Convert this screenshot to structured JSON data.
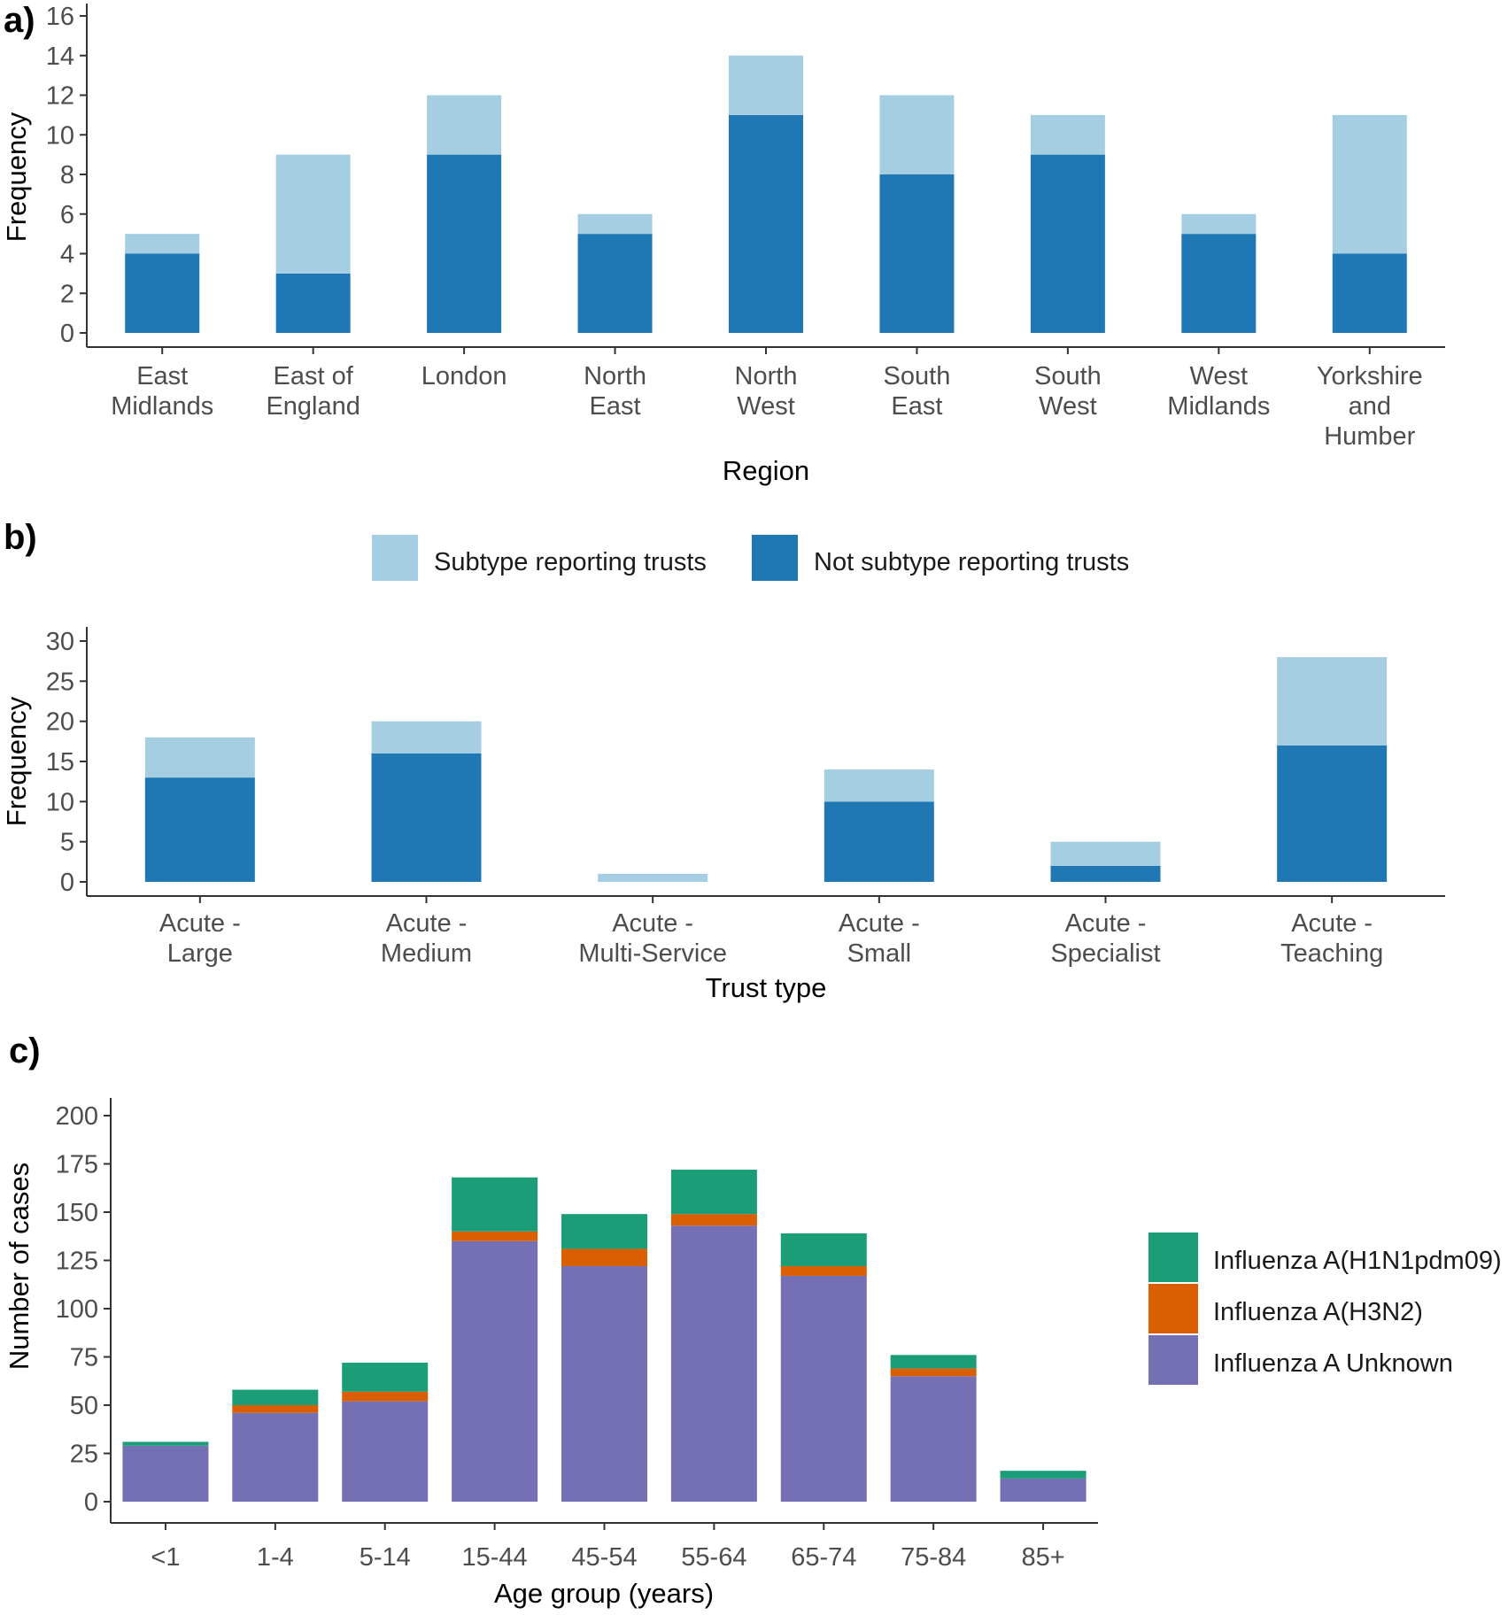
{
  "chart_data": [
    {
      "panel": "a)",
      "type": "bar",
      "stacked": true,
      "xlabel": "Region",
      "ylabel": "Frequency",
      "ylim": [
        0,
        16
      ],
      "yticks": [
        0,
        2,
        4,
        6,
        8,
        10,
        12,
        14,
        16
      ],
      "categories": [
        [
          "East",
          "Midlands"
        ],
        [
          "East of",
          "England"
        ],
        [
          "London"
        ],
        [
          "North",
          "East"
        ],
        [
          "North",
          "West"
        ],
        [
          "South",
          "East"
        ],
        [
          "South",
          "West"
        ],
        [
          "West",
          "Midlands"
        ],
        [
          "Yorkshire",
          "and",
          "Humber"
        ]
      ],
      "series": [
        {
          "name": "Not subtype reporting trusts",
          "color": "#1f78b4",
          "values": [
            4,
            3,
            9,
            5,
            11,
            8,
            9,
            5,
            4
          ]
        },
        {
          "name": "Subtype reporting trusts",
          "color": "#a6cee3",
          "values": [
            1,
            6,
            3,
            1,
            3,
            4,
            2,
            1,
            7
          ]
        }
      ]
    },
    {
      "panel": "b)",
      "type": "bar",
      "stacked": true,
      "xlabel": "Trust type",
      "ylabel": "Frequency",
      "ylim": [
        0,
        30
      ],
      "yticks": [
        0,
        5,
        10,
        15,
        20,
        25,
        30
      ],
      "legend": [
        {
          "name": "Subtype reporting trusts",
          "color": "#a6cee3"
        },
        {
          "name": "Not subtype reporting trusts",
          "color": "#1f78b4"
        }
      ],
      "categories": [
        [
          "Acute -",
          "Large"
        ],
        [
          "Acute -",
          "Medium"
        ],
        [
          "Acute -",
          "Multi-Service"
        ],
        [
          "Acute -",
          "Small"
        ],
        [
          "Acute -",
          "Specialist"
        ],
        [
          "Acute -",
          "Teaching"
        ]
      ],
      "series": [
        {
          "name": "Not subtype reporting trusts",
          "color": "#1f78b4",
          "values": [
            13,
            16,
            0,
            10,
            2,
            17
          ]
        },
        {
          "name": "Subtype reporting trusts",
          "color": "#a6cee3",
          "values": [
            5,
            4,
            1,
            4,
            3,
            11
          ]
        }
      ]
    },
    {
      "panel": "c)",
      "type": "bar",
      "stacked": true,
      "xlabel": "Age group (years)",
      "ylabel": "Number of cases",
      "ylim": [
        0,
        200
      ],
      "yticks": [
        0,
        25,
        50,
        75,
        100,
        125,
        150,
        175,
        200
      ],
      "categories": [
        [
          "<1"
        ],
        [
          "1-4"
        ],
        [
          "5-14"
        ],
        [
          "15-44"
        ],
        [
          "45-54"
        ],
        [
          "55-64"
        ],
        [
          "65-74"
        ],
        [
          "75-84"
        ],
        [
          "85+"
        ]
      ],
      "legend": [
        {
          "name": "Influenza A(H1N1pdm09)",
          "color": "#1b9e77"
        },
        {
          "name": "Influenza A(H3N2)",
          "color": "#d95f02"
        },
        {
          "name": "Influenza A Unknown",
          "color": "#7570b3"
        }
      ],
      "series": [
        {
          "name": "Influenza A Unknown",
          "color": "#7570b3",
          "values": [
            29,
            46,
            52,
            135,
            122,
            143,
            117,
            65,
            12
          ]
        },
        {
          "name": "Influenza A(H3N2)",
          "color": "#d95f02",
          "values": [
            0,
            4,
            5,
            5,
            9,
            6,
            5,
            4,
            0
          ]
        },
        {
          "name": "Influenza A(H1N1pdm09)",
          "color": "#1b9e77",
          "values": [
            2,
            8,
            15,
            28,
            18,
            23,
            17,
            7,
            4
          ]
        }
      ]
    }
  ]
}
